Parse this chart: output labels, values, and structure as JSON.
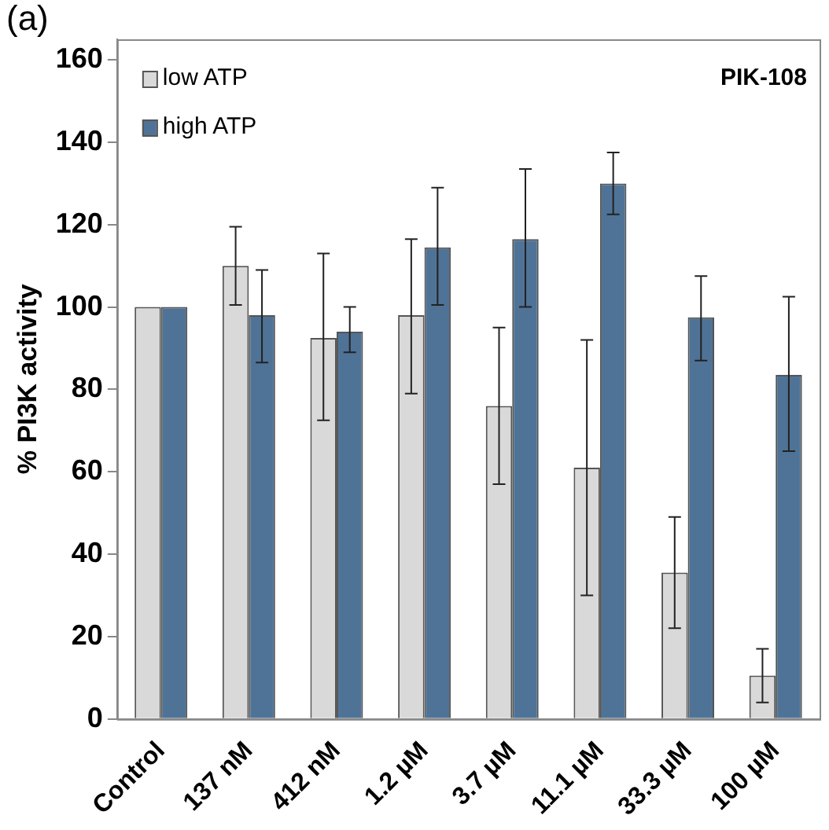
{
  "chart_data": {
    "type": "bar",
    "ylabel": "% PI3K activity",
    "annotations": [
      "(a)",
      "PIK-108"
    ],
    "categories": [
      "Control",
      "137 nM",
      "412 nM",
      "1.2 µM",
      "3.7 µM",
      "11.1 µM",
      "33.3 µM",
      "100 µM"
    ],
    "series": [
      {
        "name": "low ATP",
        "color": "#d9d9d9",
        "values": [
          100,
          110,
          92.5,
          98,
          76,
          61,
          35.5,
          10.5
        ],
        "errors": [
          null,
          [
            100.5,
            119.5
          ],
          [
            72.5,
            113
          ],
          [
            79,
            116.5
          ],
          [
            57,
            95
          ],
          [
            30,
            92
          ],
          [
            22,
            49
          ],
          [
            4,
            17
          ]
        ]
      },
      {
        "name": "high ATP",
        "color": "#4f7396",
        "values": [
          100,
          98,
          94,
          114.5,
          116.5,
          130,
          97.5,
          83.5
        ],
        "errors": [
          null,
          [
            86.5,
            109
          ],
          [
            89,
            100
          ],
          [
            100.5,
            129
          ],
          [
            100,
            133.5
          ],
          [
            122.5,
            137.5
          ],
          [
            87,
            107.5
          ],
          [
            65,
            102.5
          ]
        ]
      }
    ],
    "ylim": [
      0,
      165
    ],
    "yticks": [
      0,
      20,
      40,
      60,
      80,
      100,
      120,
      140,
      160
    ],
    "grid": false,
    "legend": "top left"
  }
}
